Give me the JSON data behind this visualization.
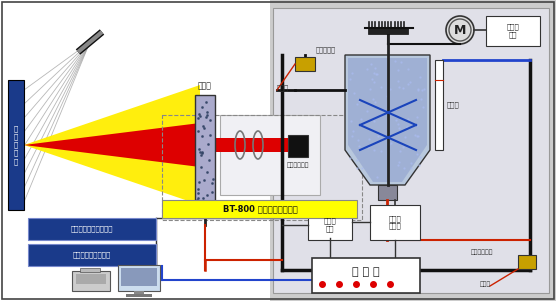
{
  "bg_left": "#ffffff",
  "bg_right": "#cccccc",
  "border_color": "#444444",
  "labels": {
    "guang_dian": "光\n电\n探\n测\n器",
    "san_wei": "三维自动对中控制系统",
    "xin_hao": "信号转换与数据电路",
    "yang_pin": "样品池",
    "ban_dao": "半导体激光器",
    "bt800": "BT-800 自动循环进样系统",
    "zi_dong_jin": "自动进水阀",
    "jin_shui": "进水口",
    "shui_wei": "水位计",
    "zhuan_su": "转速控\n制器",
    "ding_shi": "定时控\n制器",
    "chao_sheng": "超声波\n分散器",
    "xun_huan": "循环／排放阀",
    "pai_fang": "排放口",
    "kong_zhi": "控 制 器"
  },
  "colors": {
    "red_beam": "#dd0000",
    "yellow_beam": "#ffee00",
    "blue_box": "#1a3a8a",
    "yellow_label": "#ffff00",
    "tank_water": "#8899cc",
    "pipe_dark": "#111111",
    "pipe_red": "#cc2200",
    "pipe_blue": "#2244cc",
    "gold_valve": "#c8a000",
    "white_box": "#ffffff",
    "gray_bg": "#cccccc",
    "light_gray": "#e0e0e8"
  }
}
